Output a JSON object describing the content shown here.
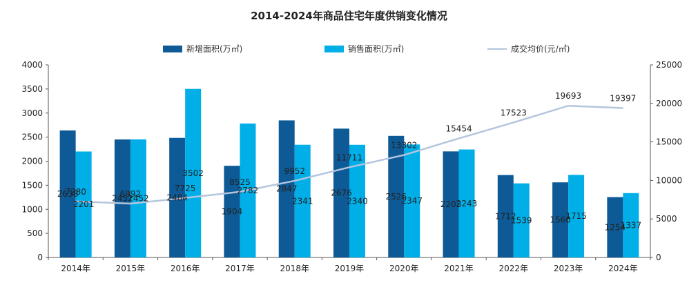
{
  "colors": {
    "new_supply": "#0d5a96",
    "sales": "#00aee8",
    "price": "#b4c5dd",
    "axis": "#555555",
    "text": "#222222"
  },
  "chart_data": {
    "type": "bar",
    "title": "2014-2024年商品住宅年度供销变化情况",
    "categories": [
      "2014年",
      "2015年",
      "2016年",
      "2017年",
      "2018年",
      "2019年",
      "2020年",
      "2021年",
      "2022年",
      "2023年",
      "2024年"
    ],
    "series": [
      {
        "name": "新增面积(万㎡)",
        "type": "bar",
        "axis": "left",
        "values": [
          2638,
          2451,
          2484,
          1904,
          2847,
          2676,
          2526,
          2203,
          1712,
          1560,
          1254
        ]
      },
      {
        "name": "销售面积(万㎡)",
        "type": "bar",
        "axis": "left",
        "values": [
          2201,
          2452,
          3502,
          2782,
          2341,
          2340,
          2347,
          2243,
          1539,
          1715,
          1337
        ]
      },
      {
        "name": "成交均价(元/㎡)",
        "type": "line",
        "axis": "right",
        "values": [
          7280,
          6992,
          7725,
          8525,
          9952,
          11711,
          13302,
          15454,
          17523,
          19693,
          19397
        ]
      }
    ],
    "y_left": {
      "min": 0,
      "max": 4000,
      "ticks": [
        0,
        500,
        1000,
        1500,
        2000,
        2500,
        3000,
        3500,
        4000
      ]
    },
    "y_right": {
      "min": 0,
      "max": 25000,
      "ticks": [
        0,
        5000,
        10000,
        15000,
        20000,
        25000
      ]
    },
    "legend_position": "top",
    "grid": false
  }
}
